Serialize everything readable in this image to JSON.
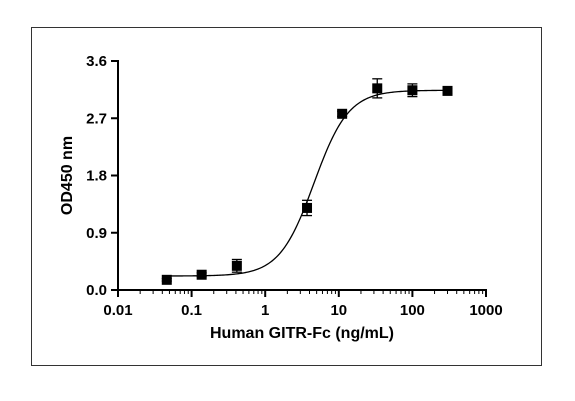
{
  "chart_data": {
    "type": "scatter",
    "xlabel": "Human GITR-Fc (ng/mL)",
    "ylabel": "OD450 nm",
    "x_scale": "log",
    "xlim": [
      0.01,
      1000
    ],
    "ylim": [
      0.0,
      3.6
    ],
    "x_ticks": [
      "0.01",
      "0.1",
      "1",
      "10",
      "100",
      "1000"
    ],
    "y_ticks": [
      "0.0",
      "0.9",
      "1.8",
      "2.7",
      "3.6"
    ],
    "grid": false,
    "legend": "none",
    "fit": "sigmoidal 4PL curve",
    "series": [
      {
        "marker": "square",
        "color": "#000000",
        "points": [
          {
            "x": 0.046,
            "y": 0.16,
            "err": 0.02
          },
          {
            "x": 0.137,
            "y": 0.24,
            "err": 0.03
          },
          {
            "x": 0.412,
            "y": 0.38,
            "err": 0.1
          },
          {
            "x": 3.7,
            "y": 1.29,
            "err": 0.12
          },
          {
            "x": 11.1,
            "y": 2.77,
            "err": 0.04
          },
          {
            "x": 33.3,
            "y": 3.17,
            "err": 0.15
          },
          {
            "x": 100,
            "y": 3.14,
            "err": 0.1
          },
          {
            "x": 300,
            "y": 3.13,
            "err": 0.04
          }
        ]
      }
    ]
  }
}
